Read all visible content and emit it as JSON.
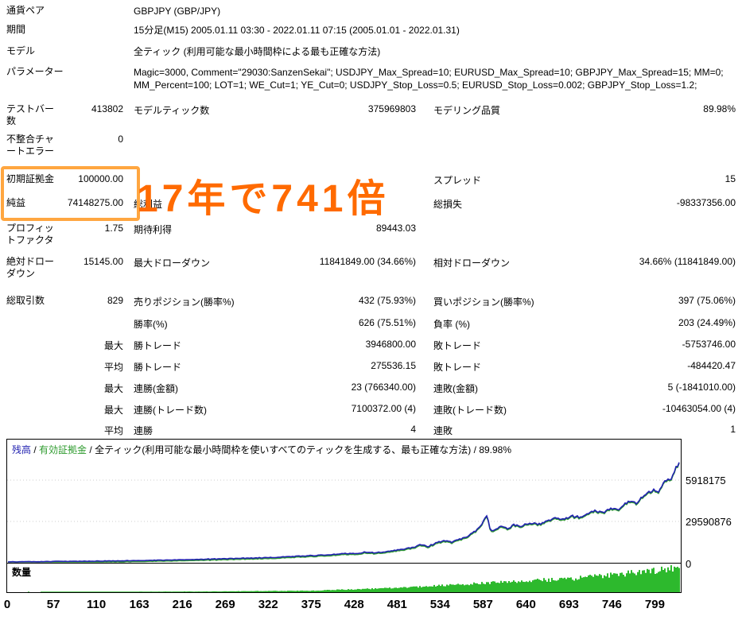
{
  "report": {
    "info_rows": [
      {
        "label": "通貨ペア",
        "value": "GBPJPY (GBP/JPY)"
      },
      {
        "label": "期間",
        "value": "15分足(M15) 2005.01.11 03:30 - 2022.01.11 07:15 (2005.01.01 - 2022.01.31)"
      },
      {
        "label": "モデル",
        "value": "全ティック (利用可能な最小時間枠による最も正確な方法)"
      },
      {
        "label": "パラメーター",
        "value": "Magic=3000, Comment=\"29030:SanzenSekai\"; USDJPY_Max_Spread=10; EURUSD_Max_Spread=10; GBPJPY_Max_Spread=15; MM=0; MM_Percent=100; LOT=1; WE_Cut=1; YE_Cut=0; USDJPY_Stop_Loss=0.5; EURUSD_Stop_Loss=0.002; GBPJPY_Stop_Loss=1.2;"
      }
    ],
    "stat_rows": [
      {
        "c1_label": "テストバー数",
        "c1_value": "413802",
        "c2_label": "モデルティック数",
        "c2_value": "375969803",
        "c3_label": "モデリング品質",
        "c3_value": "89.98%"
      },
      {
        "c1_label": "不整合チャートエラー",
        "c1_value": "0",
        "c2_label": "",
        "c2_value": "",
        "c3_label": "",
        "c3_value": ""
      },
      {
        "c1_label": "初期証拠金",
        "c1_value": "100000.00",
        "c2_label": "",
        "c2_value": "",
        "c3_label": "スプレッド",
        "c3_value": "15"
      },
      {
        "c1_label": "純益",
        "c1_value": "74148275.00",
        "c2_label": "総利益",
        "c2_value": "",
        "c3_label": "総損失",
        "c3_value": "-98337356.00"
      },
      {
        "c1_label": "プロフィットファクタ",
        "c1_value": "1.75",
        "c2_label": "期待利得",
        "c2_value": "89443.03",
        "c3_label": "",
        "c3_value": ""
      },
      {
        "c1_label": "絶対ドローダウン",
        "c1_value": "15145.00",
        "c2_label": "最大ドローダウン",
        "c2_value": "11841849.00 (34.66%)",
        "c3_label": "相対ドローダウン",
        "c3_value": "34.66% (11841849.00)"
      },
      {
        "c1_label": "総取引数",
        "c1_value": "829",
        "c2_label": "売りポジション(勝率%)",
        "c2_value": "432 (75.93%)",
        "c3_label": "買いポジション(勝率%)",
        "c3_value": "397 (75.06%)"
      },
      {
        "c1_label": "",
        "c1_value": "",
        "c2_label": "勝率(%)",
        "c2_value": "626 (75.51%)",
        "c3_label": "負率 (%)",
        "c3_value": "203 (24.49%)"
      },
      {
        "c1_label": "",
        "c1_value": "最大",
        "c2_label": "勝トレード",
        "c2_value": "3946800.00",
        "c3_label": "敗トレード",
        "c3_value": "-5753746.00"
      },
      {
        "c1_label": "",
        "c1_value": "平均",
        "c2_label": "勝トレード",
        "c2_value": "275536.15",
        "c3_label": "敗トレード",
        "c3_value": "-484420.47"
      },
      {
        "c1_label": "",
        "c1_value": "最大",
        "c2_label": "連勝(金額)",
        "c2_value": "23 (766340.00)",
        "c3_label": "連敗(金額)",
        "c3_value": "5 (-1841010.00)"
      },
      {
        "c1_label": "",
        "c1_value": "最大",
        "c2_label": "連勝(トレード数)",
        "c2_value": "7100372.00 (4)",
        "c3_label": "連敗(トレード数)",
        "c3_value": "-10463054.00 (4)"
      },
      {
        "c1_label": "",
        "c1_value": "平均",
        "c2_label": "連勝",
        "c2_value": "4",
        "c3_label": "連敗",
        "c3_value": "1"
      }
    ]
  },
  "annotation": {
    "text": "17年で741倍"
  },
  "colors": {
    "annotation_text": "#ff6a00",
    "highlight_border": "#ffa640"
  },
  "chart_data": {
    "type": "line",
    "legend": {
      "balance_label": "残高",
      "equity_label": "有効証拠金",
      "model_text": "全ティック(利用可能な最小時間枠を使いすべてのティックを生成する、最も正確な方法)",
      "quality": "89.98%",
      "separator": " / "
    },
    "volume_label": "数量",
    "y_axis_labels": [
      "5918175",
      "29590876",
      "0"
    ],
    "y_gridline_value": 29590876,
    "x_ticks": [
      0,
      57,
      110,
      163,
      216,
      269,
      322,
      375,
      428,
      481,
      534,
      587,
      640,
      693,
      746,
      799
    ],
    "x_max": 829,
    "balance_points": [
      [
        0,
        100000
      ],
      [
        40,
        250000
      ],
      [
        80,
        450000
      ],
      [
        120,
        700000
      ],
      [
        160,
        1000000
      ],
      [
        200,
        1400000
      ],
      [
        240,
        1900000
      ],
      [
        280,
        2500000
      ],
      [
        320,
        3200000
      ],
      [
        350,
        3900000
      ],
      [
        380,
        4700000
      ],
      [
        400,
        5300000
      ],
      [
        415,
        6200000
      ],
      [
        425,
        5800000
      ],
      [
        440,
        7000000
      ],
      [
        455,
        6600000
      ],
      [
        470,
        7800000
      ],
      [
        485,
        9000000
      ],
      [
        500,
        10500000
      ],
      [
        510,
        12500000
      ],
      [
        518,
        11200000
      ],
      [
        528,
        13500000
      ],
      [
        540,
        15500000
      ],
      [
        548,
        14200000
      ],
      [
        558,
        16500000
      ],
      [
        568,
        18500000
      ],
      [
        578,
        23000000
      ],
      [
        586,
        28500000
      ],
      [
        591,
        34200000
      ],
      [
        595,
        22400000
      ],
      [
        602,
        23500000
      ],
      [
        608,
        25000000
      ],
      [
        616,
        24000000
      ],
      [
        624,
        26500000
      ],
      [
        632,
        25500000
      ],
      [
        645,
        28000000
      ],
      [
        655,
        27000000
      ],
      [
        665,
        29500000
      ],
      [
        675,
        31500000
      ],
      [
        685,
        30500000
      ],
      [
        695,
        33000000
      ],
      [
        705,
        32000000
      ],
      [
        715,
        34500000
      ],
      [
        725,
        36500000
      ],
      [
        735,
        35500000
      ],
      [
        745,
        38500000
      ],
      [
        752,
        37500000
      ],
      [
        760,
        41000000
      ],
      [
        768,
        43500000
      ],
      [
        775,
        42500000
      ],
      [
        782,
        46000000
      ],
      [
        790,
        50000000
      ],
      [
        797,
        52000000
      ],
      [
        803,
        50000000
      ],
      [
        809,
        56000000
      ],
      [
        814,
        60000000
      ],
      [
        818,
        58000000
      ],
      [
        822,
        64000000
      ],
      [
        825,
        69000000
      ],
      [
        827,
        67000000
      ],
      [
        829,
        74248275
      ]
    ],
    "volume_profile": [
      [
        0,
        0.02
      ],
      [
        150,
        0.02
      ],
      [
        250,
        0.03
      ],
      [
        320,
        0.05
      ],
      [
        375,
        0.06
      ],
      [
        400,
        0.09
      ],
      [
        428,
        0.12
      ],
      [
        455,
        0.15
      ],
      [
        481,
        0.18
      ],
      [
        510,
        0.22
      ],
      [
        534,
        0.27
      ],
      [
        560,
        0.32
      ],
      [
        587,
        0.37
      ],
      [
        610,
        0.4
      ],
      [
        640,
        0.45
      ],
      [
        665,
        0.5
      ],
      [
        693,
        0.55
      ],
      [
        720,
        0.62
      ],
      [
        746,
        0.7
      ],
      [
        770,
        0.78
      ],
      [
        790,
        0.85
      ],
      [
        805,
        0.9
      ],
      [
        815,
        0.95
      ],
      [
        829,
        1.0
      ]
    ],
    "colors": {
      "balance_line": "#2121b0",
      "equity_line": "#2e9b2e",
      "volume_bar": "#2db92d"
    }
  }
}
